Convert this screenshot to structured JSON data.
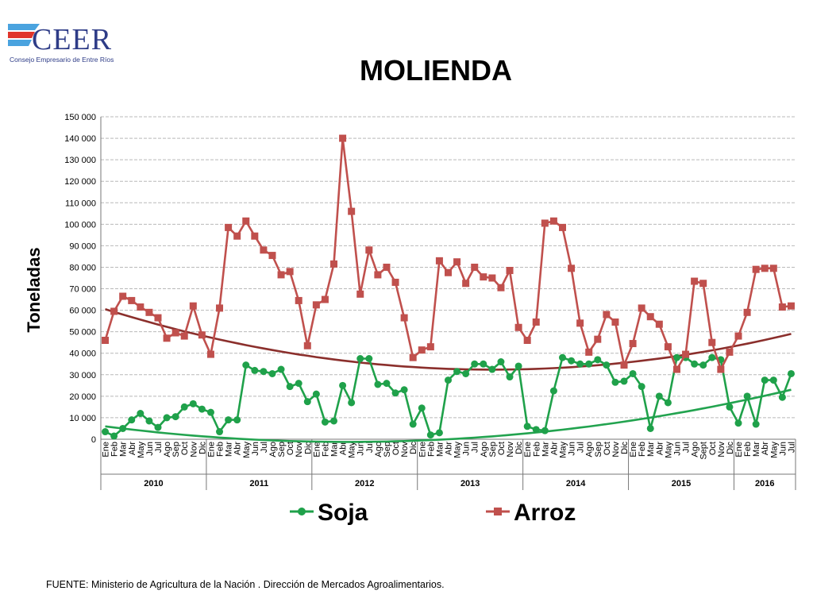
{
  "logo": {
    "text": "CEER",
    "subtitle": "Consejo Empresario de Entre Ríos"
  },
  "footer": "FUENTE: Ministerio de Agricultura de la Nación . Dirección de Mercados Agroalimentarios.",
  "colors": {
    "soja": "#1fa14a",
    "arroz": "#c0504d",
    "soja_trend": "#22a34f",
    "arroz_trend": "#8b2f2c",
    "grid": "#b9b9b9"
  },
  "chart_data": {
    "type": "line",
    "title": "MOLIENDA",
    "xlabel": "",
    "ylabel": "Toneladas",
    "ylim": [
      0,
      150000
    ],
    "y_ticks": [
      "0",
      "10 000",
      "20 000",
      "30 000",
      "40 000",
      "50 000",
      "60 000",
      "70 000",
      "80 000",
      "90 000",
      "100 000",
      "110 000",
      "120 000",
      "130 000",
      "140 000",
      "150 000"
    ],
    "grid": true,
    "legend_position": "bottom",
    "categories": [
      "Ene",
      "Feb",
      "Mar",
      "Abr",
      "May",
      "Jun",
      "Jul",
      "Ago",
      "Sep",
      "Oct",
      "Nov",
      "Dic",
      "Ene",
      "Feb",
      "Mar",
      "Abr",
      "May",
      "Jun",
      "Jul",
      "Ago",
      "Sep",
      "Oct",
      "Nov",
      "Dic",
      "Ene",
      "Feb",
      "Mar",
      "Abr",
      "May",
      "Jun",
      "Jul",
      "Ago",
      "Sep",
      "Oct",
      "Nov",
      "Dic",
      "Ene",
      "Feb",
      "Mar",
      "Abr",
      "May",
      "Jun",
      "Jul",
      "Ago",
      "Sep",
      "Oct",
      "Nov",
      "Dic",
      "Ene",
      "Feb",
      "Mar",
      "Abr",
      "May",
      "Jun",
      "Jul",
      "Ago",
      "Sep",
      "Oct",
      "Nov",
      "Dic",
      "Ene",
      "Feb",
      "Mar",
      "Abr",
      "May",
      "Jun",
      "Jul",
      "Ago",
      "Sept",
      "Oct",
      "Nov",
      "Dic",
      "Ene",
      "Feb",
      "Mar",
      "Abr",
      "May",
      "Jun",
      "Jul"
    ],
    "year_groups": [
      {
        "label": "2010",
        "count": 12
      },
      {
        "label": "2011",
        "count": 12
      },
      {
        "label": "2012",
        "count": 12
      },
      {
        "label": "2013",
        "count": 12
      },
      {
        "label": "2014",
        "count": 12
      },
      {
        "label": "2015",
        "count": 12
      },
      {
        "label": "2016",
        "count": 7
      }
    ],
    "series": [
      {
        "name": "Soja",
        "marker": "circle",
        "values": [
          3500,
          1500,
          5000,
          9000,
          12000,
          8500,
          5500,
          10000,
          10500,
          15000,
          16500,
          14000,
          12500,
          3500,
          9000,
          9000,
          34500,
          32000,
          31500,
          30500,
          32500,
          24500,
          26000,
          17500,
          21000,
          8000,
          8500,
          25000,
          17000,
          37500,
          37500,
          25500,
          26000,
          21500,
          23000,
          7000,
          14500,
          2000,
          3000,
          27500,
          31500,
          30500,
          35000,
          35000,
          32500,
          36000,
          29000,
          34000,
          6000,
          4500,
          4000,
          22500,
          38000,
          36500,
          35000,
          35000,
          37000,
          34500,
          26500,
          27000,
          30500,
          24500,
          5000,
          20000,
          17000,
          38000,
          38000,
          35000,
          34500,
          38000,
          37000,
          15000,
          7500,
          20000,
          7000,
          27500,
          27500,
          19500,
          30500
        ],
        "trend": [
          6000,
          23000
        ]
      },
      {
        "name": "Arroz",
        "marker": "square",
        "values": [
          46000,
          59500,
          66500,
          64500,
          61500,
          59000,
          56500,
          47000,
          49500,
          48000,
          62000,
          48500,
          39500,
          61000,
          98500,
          94500,
          101500,
          94500,
          88000,
          85500,
          76500,
          78000,
          64500,
          43500,
          62500,
          65000,
          81500,
          140000,
          106000,
          67500,
          88000,
          76500,
          80000,
          73000,
          56500,
          38000,
          41500,
          43000,
          83000,
          77500,
          82500,
          72500,
          80000,
          75500,
          75000,
          70500,
          78500,
          52000,
          46000,
          54500,
          100500,
          101500,
          98500,
          79500,
          54000,
          40500,
          46500,
          58000,
          54500,
          34500,
          44500,
          61000,
          57000,
          53500,
          43000,
          32500,
          39500,
          73500,
          72500,
          45000,
          32500,
          40500,
          48000,
          59000,
          79000,
          79500,
          79500,
          61500,
          62000
        ],
        "trend": [
          60500,
          49000
        ]
      }
    ]
  }
}
